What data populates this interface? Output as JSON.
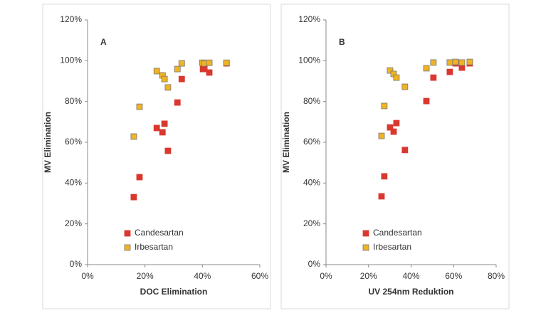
{
  "chart_data": [
    {
      "type": "scatter",
      "annotation": "A",
      "xlabel": "DOC Elimination",
      "ylabel": "MV Elimination",
      "xlim": [
        0,
        60
      ],
      "xticks": [
        {
          "value": 0,
          "label": "0%"
        },
        {
          "value": 20,
          "label": "20%"
        },
        {
          "value": 40,
          "label": "40%"
        },
        {
          "value": 60,
          "label": "60%"
        }
      ],
      "ylim": [
        0,
        120
      ],
      "yticks": [
        {
          "value": 0,
          "label": "0%"
        },
        {
          "value": 20,
          "label": "20%"
        },
        {
          "value": 40,
          "label": "40%"
        },
        {
          "value": 60,
          "label": "60%"
        },
        {
          "value": 80,
          "label": "80%"
        },
        {
          "value": 100,
          "label": "100%"
        },
        {
          "value": 120,
          "label": "120%"
        }
      ],
      "legend": "lower left",
      "series": [
        {
          "name": "Candesartan",
          "color": "#d9382f",
          "x": [
            16.1,
            18.1,
            24.1,
            26.1,
            26.8,
            28.0,
            31.3,
            32.8,
            40.2,
            40.7,
            42.4,
            48.4
          ],
          "values": [
            33.1,
            42.9,
            67.0,
            64.9,
            69.1,
            55.8,
            79.5,
            91.0,
            95.9,
            96.2,
            94.2,
            98.7
          ]
        },
        {
          "name": "Irbesartan",
          "color": "#f0b323",
          "x": [
            16.1,
            18.1,
            24.1,
            26.1,
            26.8,
            28.0,
            31.3,
            32.8,
            40.0,
            40.7,
            42.4,
            48.4
          ],
          "values": [
            62.8,
            77.4,
            94.9,
            92.8,
            91.0,
            86.9,
            95.9,
            98.7,
            99.0,
            98.7,
            99.0,
            99.0
          ]
        }
      ]
    },
    {
      "type": "scatter",
      "annotation": "B",
      "xlabel": "UV 254nm Reduktion",
      "ylabel": "MV Elimination",
      "xlim": [
        0,
        80
      ],
      "xticks": [
        {
          "value": 0,
          "label": "0%"
        },
        {
          "value": 20,
          "label": "20%"
        },
        {
          "value": 40,
          "label": "40%"
        },
        {
          "value": 60,
          "label": "60%"
        },
        {
          "value": 80,
          "label": "80%"
        }
      ],
      "ylim": [
        0,
        120
      ],
      "yticks": [
        {
          "value": 0,
          "label": "0%"
        },
        {
          "value": 20,
          "label": "20%"
        },
        {
          "value": 40,
          "label": "40%"
        },
        {
          "value": 60,
          "label": "60%"
        },
        {
          "value": 80,
          "label": "80%"
        },
        {
          "value": 100,
          "label": "100%"
        },
        {
          "value": 120,
          "label": "120%"
        }
      ],
      "legend": "lower left",
      "series": [
        {
          "name": "Candesartan",
          "color": "#d9382f",
          "x": [
            26.1,
            27.4,
            30.1,
            31.8,
            33.1,
            37.1,
            47.2,
            50.5,
            58.2,
            60.9,
            63.9,
            67.6
          ],
          "values": [
            33.5,
            43.3,
            67.3,
            65.2,
            69.4,
            56.2,
            80.2,
            91.7,
            94.5,
            98.7,
            96.6,
            98.7
          ]
        },
        {
          "name": "Irbesartan",
          "color": "#f0b323",
          "x": [
            26.1,
            27.4,
            30.1,
            31.8,
            33.1,
            37.1,
            47.2,
            50.5,
            58.2,
            60.9,
            63.9,
            67.6
          ],
          "values": [
            63.1,
            77.8,
            95.2,
            93.5,
            91.7,
            87.2,
            96.3,
            99.1,
            99.1,
            99.4,
            99.1,
            99.4
          ]
        }
      ]
    }
  ]
}
